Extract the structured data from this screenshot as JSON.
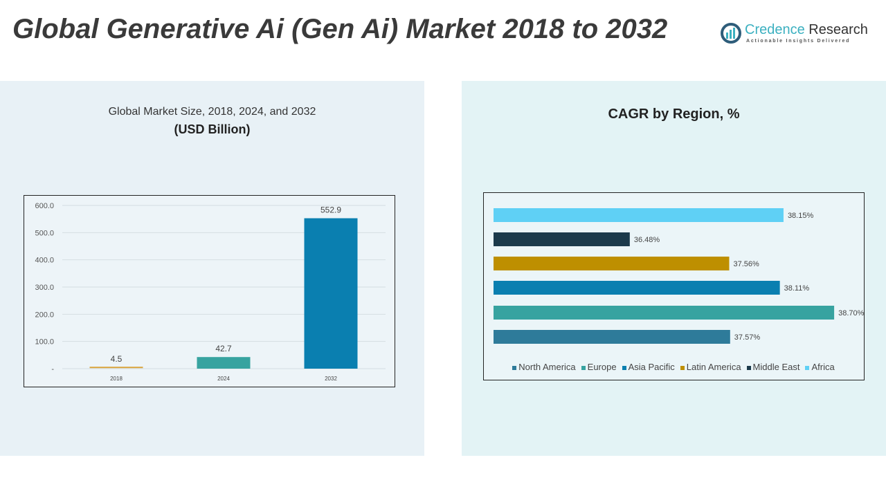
{
  "header": {
    "title": "Global Generative Ai (Gen Ai) Market 2018 to 2032"
  },
  "logo": {
    "name_part1": "Credence",
    "name_part2": " Research",
    "tagline": "Actionable Insights Delivered"
  },
  "chart_data": [
    {
      "type": "bar",
      "title": "Global Market Size, 2018, 2024, and 2032",
      "subtitle": "(USD Billion)",
      "categories": [
        "2018",
        "2024",
        "2032"
      ],
      "values": [
        4.5,
        42.7,
        552.9
      ],
      "value_labels": [
        "4.5",
        "42.7",
        "552.9"
      ],
      "colors": [
        "#d9a33c",
        "#37a3a0",
        "#0a7fb0"
      ],
      "ylim": [
        0,
        600
      ],
      "yticks": [
        "-",
        "100.0",
        "200.0",
        "300.0",
        "400.0",
        "500.0",
        "600.0"
      ],
      "grid": true
    },
    {
      "type": "bar",
      "orientation": "horizontal",
      "title": "CAGR by Region, %",
      "categories": [
        "North America",
        "Europe",
        "Asia Pacific",
        "Latin America",
        "Middle East",
        "Africa"
      ],
      "values": [
        37.57,
        38.7,
        38.11,
        37.56,
        36.48,
        38.15
      ],
      "value_labels": [
        "37.57%",
        "38.70%",
        "38.11%",
        "37.56%",
        "36.48%",
        "38.15%"
      ],
      "colors": [
        "#2e7b9a",
        "#37a3a0",
        "#0a7fb0",
        "#be8f00",
        "#1b3a4b",
        "#5fd0f5"
      ],
      "xlim": [
        35,
        39
      ],
      "legend": "bottom"
    }
  ]
}
